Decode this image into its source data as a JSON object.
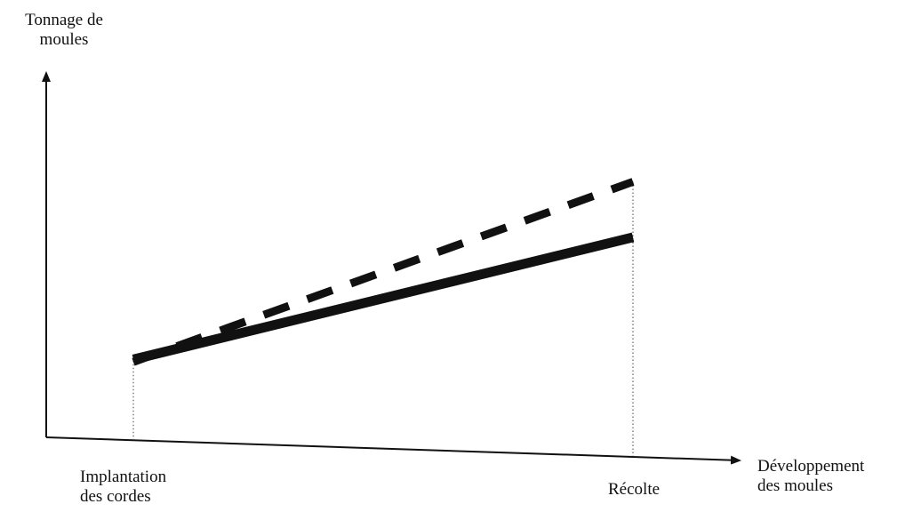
{
  "chart_data": {
    "type": "line",
    "ylabel": [
      "Tonnage de",
      "moules"
    ],
    "xlabel": [
      "Développement",
      "des moules"
    ],
    "x_tick_labels": [
      {
        "lines": [
          "Implantation",
          "des cordes"
        ]
      },
      {
        "lines": [
          "Récolte"
        ]
      }
    ],
    "x": [
      "Implantation des cordes",
      "Récolte"
    ],
    "series": [
      {
        "style": "solid",
        "color": "#111111",
        "values": [
          0.32,
          0.87
        ]
      },
      {
        "style": "dashed",
        "color": "#111111",
        "values": [
          0.31,
          1.09
        ]
      }
    ],
    "grid": false,
    "legend": false,
    "yrange": [
      0,
      1.25
    ]
  }
}
